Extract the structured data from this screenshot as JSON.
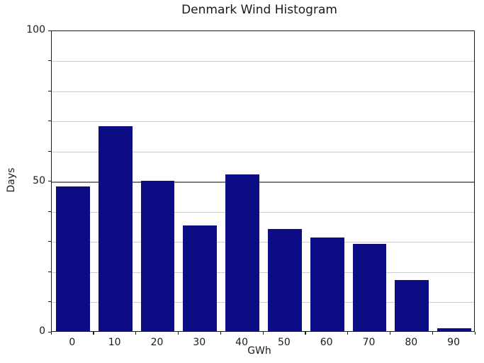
{
  "chart_data": {
    "type": "bar",
    "title": "Denmark Wind Histogram",
    "xlabel": "GWh",
    "ylabel": "Days",
    "categories": [
      "0",
      "10",
      "20",
      "30",
      "40",
      "50",
      "60",
      "70",
      "80",
      "90"
    ],
    "values": [
      48,
      68,
      50,
      35,
      52,
      34,
      31,
      29,
      17,
      1
    ],
    "ylim": [
      0,
      100
    ],
    "ytick_labels": [
      "0",
      "50",
      "100"
    ],
    "ytick_values": [
      0,
      50,
      100
    ],
    "grid_step": 10,
    "grid": "horizontal-on",
    "legend": "none",
    "bar_color": "#0c0c84",
    "grid_minor_color": "#cdcdcd",
    "grid_major_color": "#7f7f7f",
    "axis_color": "#1a1a1a",
    "background_color": "#ffffff"
  }
}
